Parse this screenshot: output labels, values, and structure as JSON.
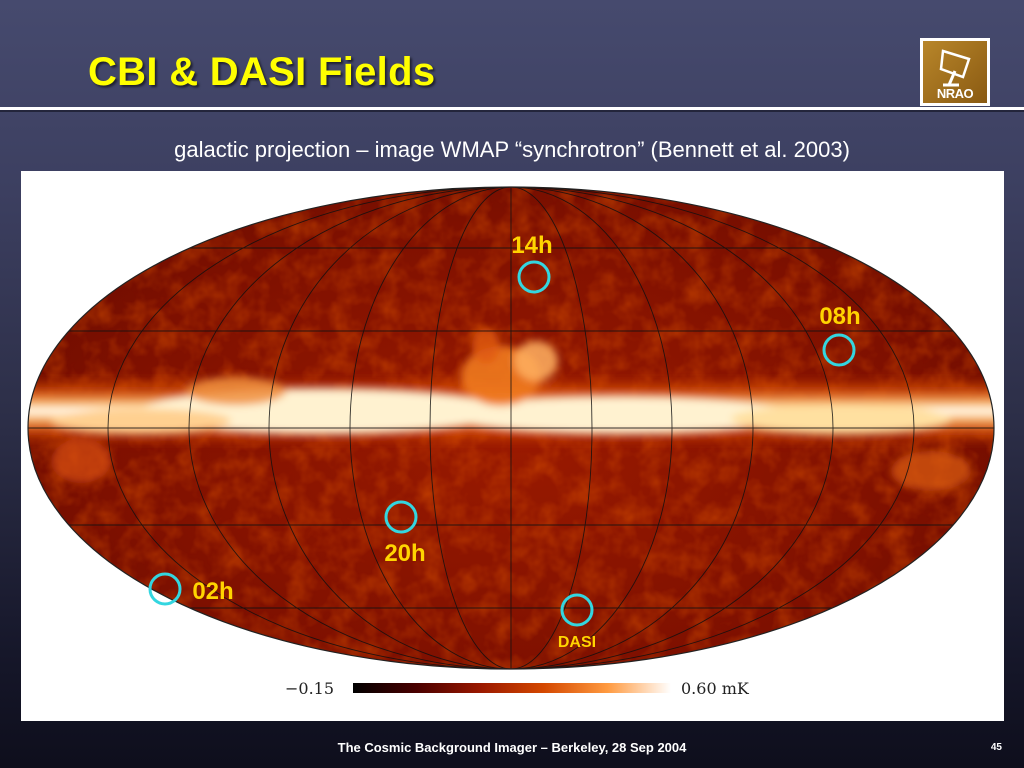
{
  "slide": {
    "title": "CBI & DASI Fields",
    "subtitle": "galactic projection – image WMAP “synchrotron” (Bennett et al. 2003)",
    "footer": "The Cosmic Background Imager – Berkeley, 28 Sep 2004",
    "page_number": "45",
    "title_color": "#ffff00",
    "logo": {
      "text": "NRAO",
      "icon": "nrao-telescope-logo"
    }
  },
  "sky_map": {
    "projection": "galactic",
    "fields": [
      {
        "label": "14h",
        "marker_color": "#33d6e0"
      },
      {
        "label": "08h",
        "marker_color": "#33d6e0"
      },
      {
        "label": "20h",
        "marker_color": "#33d6e0"
      },
      {
        "label": "02h",
        "marker_color": "#33d6e0"
      },
      {
        "label": "DASI",
        "marker_color": "#33d6e0"
      }
    ],
    "colorbar": {
      "min_label": "−0.15",
      "max_label": "0.60 mK",
      "colors": [
        "#000000",
        "#4a0000",
        "#9a1800",
        "#d44800",
        "#ff9a40",
        "#ffffff"
      ]
    }
  }
}
